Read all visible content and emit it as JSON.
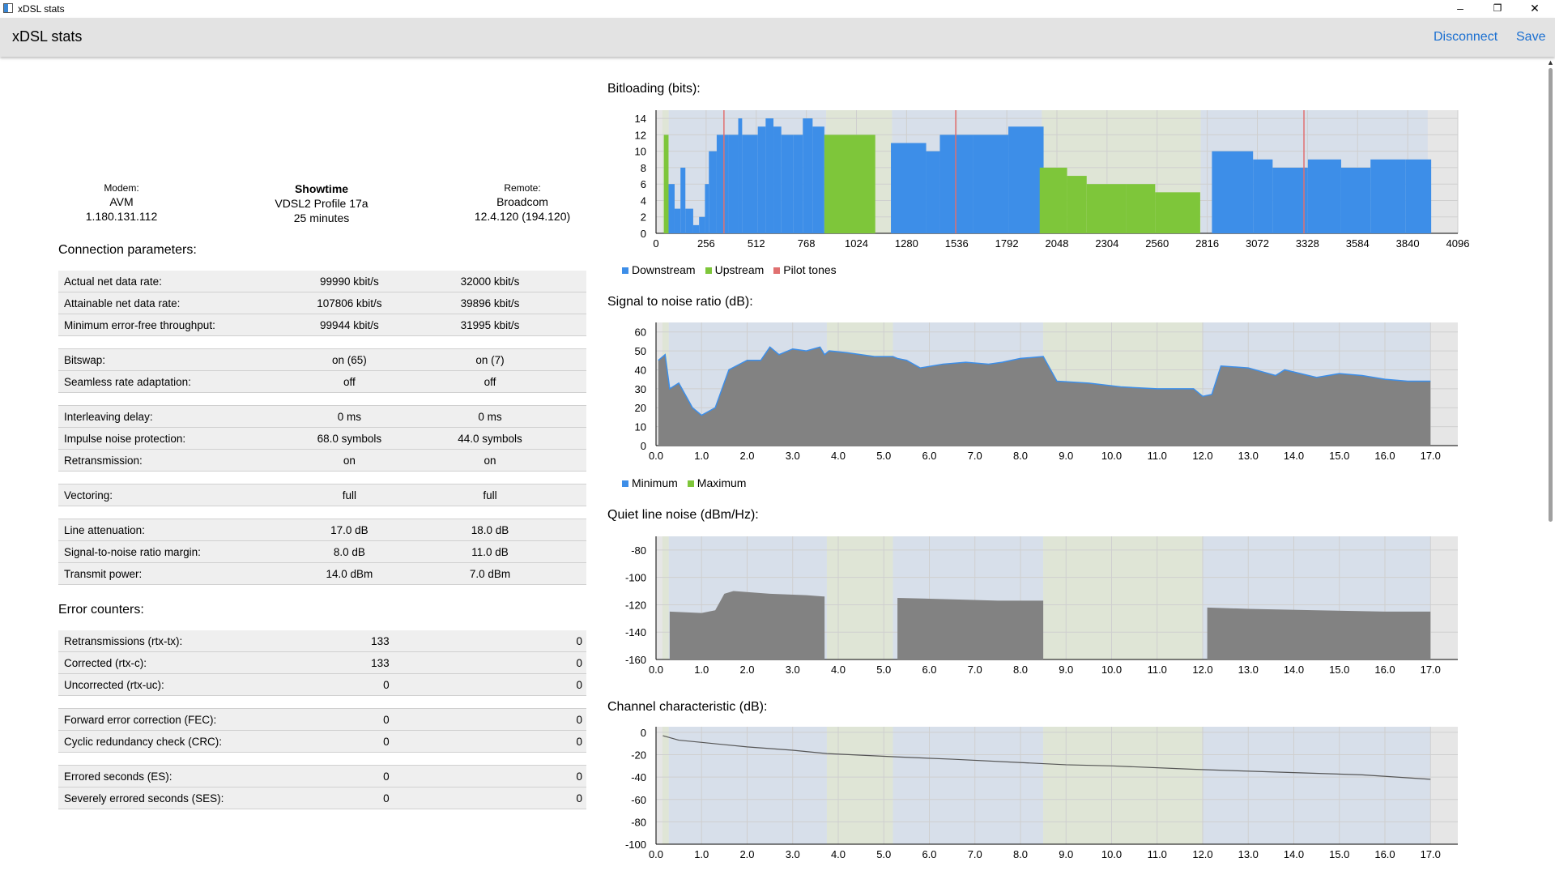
{
  "window": {
    "title": "xDSL stats",
    "minimize": "–",
    "restore": "❐",
    "close": "✕"
  },
  "header": {
    "title": "xDSL stats",
    "disconnect": "Disconnect",
    "save": "Save"
  },
  "summary": {
    "modem_label": "Modem:",
    "modem_name": "AVM",
    "modem_version": "1.180.131.112",
    "state": "Showtime",
    "profile": "VDSL2 Profile 17a",
    "uptime": "25 minutes",
    "remote_label": "Remote:",
    "remote_name": "Broadcom",
    "remote_version": "12.4.120 (194.120)"
  },
  "connection": {
    "title": "Connection parameters:",
    "rows": [
      {
        "label": "Actual net data rate:",
        "ds": "99990 kbit/s",
        "us": "32000 kbit/s"
      },
      {
        "label": "Attainable net data rate:",
        "ds": "107806 kbit/s",
        "us": "39896 kbit/s"
      },
      {
        "label": "Minimum error-free throughput:",
        "ds": "99944 kbit/s",
        "us": "31995 kbit/s"
      },
      {
        "gap": true
      },
      {
        "label": "Bitswap:",
        "ds": "on (65)",
        "us": "on (7)"
      },
      {
        "label": "Seamless rate adaptation:",
        "ds": "off",
        "us": "off"
      },
      {
        "gap": true
      },
      {
        "label": "Interleaving delay:",
        "ds": "0 ms",
        "us": "0 ms"
      },
      {
        "label": "Impulse noise protection:",
        "ds": "68.0 symbols",
        "us": "44.0 symbols"
      },
      {
        "label": "Retransmission:",
        "ds": "on",
        "us": "on"
      },
      {
        "gap": true
      },
      {
        "label": "Vectoring:",
        "ds": "full",
        "us": "full"
      },
      {
        "gap": true
      },
      {
        "label": "Line attenuation:",
        "ds": "17.0 dB",
        "us": "18.0 dB"
      },
      {
        "label": "Signal-to-noise ratio margin:",
        "ds": "8.0 dB",
        "us": "11.0 dB"
      },
      {
        "label": "Transmit power:",
        "ds": "14.0 dBm",
        "us": "7.0 dBm"
      }
    ]
  },
  "errors": {
    "title": "Error counters:",
    "rows": [
      {
        "label": "Retransmissions (rtx-tx):",
        "ds": "133",
        "us": "0"
      },
      {
        "label": "Corrected (rtx-c):",
        "ds": "133",
        "us": "0"
      },
      {
        "label": "Uncorrected (rtx-uc):",
        "ds": "0",
        "us": "0"
      },
      {
        "gap": true
      },
      {
        "label": "Forward error correction (FEC):",
        "ds": "0",
        "us": "0"
      },
      {
        "label": "Cyclic redundancy check (CRC):",
        "ds": "0",
        "us": "0"
      },
      {
        "gap": true
      },
      {
        "label": "Errored seconds (ES):",
        "ds": "0",
        "us": "0"
      },
      {
        "label": "Severely errored seconds (SES):",
        "ds": "0",
        "us": "0"
      }
    ]
  },
  "colors": {
    "downstream": "#3d8ee8",
    "upstream": "#7ec63a",
    "pilot": "#e07070",
    "fill": "#828282",
    "ds_band": "#d7dfea",
    "us_band": "#dfe5d6",
    "plot_bg": "#e6e6e6"
  },
  "chart_data": [
    {
      "type": "bar",
      "title": "Bitloading (bits):",
      "xlim": [
        0,
        4096
      ],
      "ylim": [
        0,
        15
      ],
      "xticks": [
        "0",
        "256",
        "512",
        "768",
        "1024",
        "1280",
        "1536",
        "1792",
        "2048",
        "2304",
        "2560",
        "2816",
        "3072",
        "3328",
        "3584",
        "3840",
        "4096"
      ],
      "yticks": [
        "0",
        "2",
        "4",
        "6",
        "8",
        "10",
        "12",
        "14"
      ],
      "legend": [
        "Downstream",
        "Upstream",
        "Pilot tones"
      ],
      "series": [
        {
          "name": "Downstream",
          "segments": [
            [
              64,
              95,
              6
            ],
            [
              95,
              125,
              3
            ],
            [
              125,
              150,
              8
            ],
            [
              150,
              190,
              3
            ],
            [
              190,
              220,
              1
            ],
            [
              220,
              250,
              2
            ],
            [
              250,
              270,
              6
            ],
            [
              270,
              310,
              10
            ],
            [
              310,
              370,
              12
            ],
            [
              370,
              420,
              12
            ],
            [
              420,
              440,
              14
            ],
            [
              440,
              520,
              12
            ],
            [
              520,
              560,
              13
            ],
            [
              560,
              600,
              14
            ],
            [
              600,
              640,
              13
            ],
            [
              640,
              700,
              12
            ],
            [
              700,
              750,
              12
            ],
            [
              750,
              800,
              14
            ],
            [
              800,
              860,
              13
            ],
            [
              1200,
              1380,
              11
            ],
            [
              1380,
              1450,
              10
            ],
            [
              1450,
              1620,
              12
            ],
            [
              1620,
              1800,
              12
            ],
            [
              1800,
              1980,
              13
            ],
            [
              2840,
              3050,
              10
            ],
            [
              3050,
              3150,
              9
            ],
            [
              3150,
              3330,
              8
            ],
            [
              3330,
              3500,
              9
            ],
            [
              3500,
              3650,
              8
            ],
            [
              3650,
              3830,
              9
            ],
            [
              3830,
              3960,
              9
            ]
          ]
        },
        {
          "name": "Upstream",
          "segments": [
            [
              40,
              64,
              12
            ],
            [
              860,
              1120,
              12
            ],
            [
              1960,
              2100,
              8
            ],
            [
              2100,
              2200,
              7
            ],
            [
              2200,
              2400,
              6
            ],
            [
              2400,
              2550,
              6
            ],
            [
              2550,
              2780,
              5
            ]
          ]
        },
        {
          "name": "Pilot tones",
          "x": [
            347,
            1531,
            3310
          ]
        }
      ]
    },
    {
      "type": "area",
      "title": "Signal to noise ratio (dB):",
      "xlim": [
        0,
        17.6
      ],
      "ylim": [
        0,
        65
      ],
      "xticks": [
        "0.0",
        "1.0",
        "2.0",
        "3.0",
        "4.0",
        "5.0",
        "6.0",
        "7.0",
        "8.0",
        "9.0",
        "10.0",
        "11.0",
        "12.0",
        "13.0",
        "14.0",
        "15.0",
        "16.0",
        "17.0"
      ],
      "yticks": [
        "0",
        "10",
        "20",
        "30",
        "40",
        "50",
        "60"
      ],
      "legend": [
        "Minimum",
        "Maximum"
      ],
      "series": [
        {
          "name": "Minimum",
          "points": [
            [
              0.05,
              45
            ],
            [
              0.2,
              48
            ],
            [
              0.3,
              30
            ],
            [
              0.5,
              33
            ],
            [
              0.8,
              20
            ],
            [
              1.0,
              16
            ],
            [
              1.3,
              20
            ],
            [
              1.6,
              40
            ],
            [
              2.0,
              45
            ],
            [
              2.3,
              45
            ],
            [
              2.5,
              52
            ],
            [
              2.7,
              48
            ],
            [
              3.0,
              51
            ],
            [
              3.3,
              50
            ],
            [
              3.6,
              52
            ],
            [
              3.7,
              48
            ],
            [
              3.8,
              50
            ],
            [
              4.2,
              49
            ],
            [
              4.8,
              47
            ],
            [
              5.2,
              47
            ],
            [
              5.3,
              46
            ],
            [
              5.5,
              45
            ],
            [
              5.8,
              41
            ],
            [
              6.3,
              43
            ],
            [
              6.8,
              44
            ],
            [
              7.3,
              43
            ],
            [
              7.6,
              44
            ],
            [
              8.0,
              46
            ],
            [
              8.5,
              47
            ],
            [
              8.8,
              34
            ],
            [
              9.5,
              33
            ],
            [
              10.2,
              31
            ],
            [
              11.0,
              30
            ],
            [
              11.8,
              30
            ],
            [
              12.0,
              26
            ],
            [
              12.2,
              27
            ],
            [
              12.4,
              42
            ],
            [
              13.0,
              41
            ],
            [
              13.6,
              37
            ],
            [
              13.8,
              40
            ],
            [
              14.5,
              36
            ],
            [
              15.0,
              38
            ],
            [
              15.5,
              37
            ],
            [
              16.0,
              35
            ],
            [
              16.5,
              34
            ],
            [
              17.0,
              34
            ]
          ]
        }
      ]
    },
    {
      "type": "area",
      "title": "Quiet line noise (dBm/Hz):",
      "xlim": [
        0,
        17.6
      ],
      "ylim": [
        -160,
        -70
      ],
      "xticks": [
        "0.0",
        "1.0",
        "2.0",
        "3.0",
        "4.0",
        "5.0",
        "6.0",
        "7.0",
        "8.0",
        "9.0",
        "10.0",
        "11.0",
        "12.0",
        "13.0",
        "14.0",
        "15.0",
        "16.0",
        "17.0"
      ],
      "yticks": [
        "-160",
        "-140",
        "-120",
        "-100",
        "-80"
      ],
      "series": [
        {
          "name": "",
          "points": [
            [
              0.3,
              -125
            ],
            [
              1.0,
              -126
            ],
            [
              1.3,
              -124
            ],
            [
              1.5,
              -112
            ],
            [
              1.7,
              -110
            ],
            [
              2.5,
              -112
            ],
            [
              3.3,
              -113
            ],
            [
              3.7,
              -114
            ]
          ]
        },
        {
          "name": "",
          "points": [
            [
              5.3,
              -115
            ],
            [
              6.5,
              -116
            ],
            [
              7.5,
              -117
            ],
            [
              8.5,
              -117
            ]
          ]
        },
        {
          "name": "",
          "points": [
            [
              12.1,
              -122
            ],
            [
              13.0,
              -123
            ],
            [
              14.5,
              -124
            ],
            [
              16.0,
              -125
            ],
            [
              17.0,
              -125
            ]
          ]
        }
      ]
    },
    {
      "type": "line",
      "title": "Channel characteristic (dB):",
      "xlim": [
        0,
        17.6
      ],
      "ylim": [
        -100,
        5
      ],
      "xticks": [
        "0.0",
        "1.0",
        "2.0",
        "3.0",
        "4.0",
        "5.0",
        "6.0",
        "7.0",
        "8.0",
        "9.0",
        "10.0",
        "11.0",
        "12.0",
        "13.0",
        "14.0",
        "15.0",
        "16.0",
        "17.0"
      ],
      "yticks": [
        "-100",
        "-80",
        "-60",
        "-40",
        "-20",
        "0"
      ],
      "series": [
        {
          "name": "",
          "points": [
            [
              0.15,
              -3
            ],
            [
              0.5,
              -7
            ],
            [
              1.0,
              -9
            ],
            [
              2.0,
              -13
            ],
            [
              3.0,
              -16
            ],
            [
              3.75,
              -19
            ],
            [
              5.3,
              -22
            ],
            [
              6.5,
              -24
            ],
            [
              8.5,
              -28
            ],
            [
              9.0,
              -29
            ],
            [
              10.0,
              -30
            ],
            [
              11.8,
              -33
            ],
            [
              12.5,
              -34
            ],
            [
              14.0,
              -36
            ],
            [
              15.5,
              -38
            ],
            [
              17.0,
              -42
            ]
          ]
        }
      ]
    }
  ]
}
